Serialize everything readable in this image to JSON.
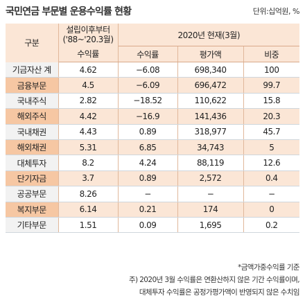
{
  "title": "국민연금 부문별 운용수익률 현황",
  "unit": "단위:십억원, %",
  "header": {
    "category": "구분",
    "since_line1": "설립이후부터",
    "since_line2": "('88~'20.3월)",
    "current": "2020년 현재(3월)",
    "col_since_return": "수익률",
    "col_return": "수익률",
    "col_value": "평가액",
    "col_share": "비중"
  },
  "rows": [
    {
      "name": "기금자산 계",
      "since": "4.62",
      "ret": "−6.08",
      "value": "698,340",
      "share": "100",
      "shade": false
    },
    {
      "name": "금융부문",
      "since": "4.5",
      "ret": "−6.09",
      "value": "696,472",
      "share": "99.7",
      "shade": true
    },
    {
      "name": "국내주식",
      "since": "2.82",
      "ret": "−18.52",
      "value": "110,622",
      "share": "15.8",
      "shade": false
    },
    {
      "name": "해외주식",
      "since": "4.42",
      "ret": "−16.9",
      "value": "141,436",
      "share": "20.3",
      "shade": true
    },
    {
      "name": "국내채권",
      "since": "4.43",
      "ret": "0.89",
      "value": "318,977",
      "share": "45.7",
      "shade": false
    },
    {
      "name": "해외채권",
      "since": "5.31",
      "ret": "6.85",
      "value": "34,743",
      "share": "5",
      "shade": true
    },
    {
      "name": "대체투자",
      "since": "8.2",
      "ret": "4.24",
      "value": "88,119",
      "share": "12.6",
      "shade": false
    },
    {
      "name": "단기자금",
      "since": "3.7",
      "ret": "0.89",
      "value": "2,572",
      "share": "0.4",
      "shade": true
    },
    {
      "name": "공공부문",
      "since": "8.26",
      "ret": "−",
      "value": "−",
      "share": "−",
      "shade": false
    },
    {
      "name": "복지부문",
      "since": "6.14",
      "ret": "0.21",
      "value": "174",
      "share": "0",
      "shade": true
    },
    {
      "name": "기타부문",
      "since": "1.51",
      "ret": "0.09",
      "value": "1,695",
      "share": "0.2",
      "shade": false
    }
  ],
  "notes": {
    "line1": "*금액가중수익률 기준",
    "line2": "주) 2020년 3월 수익률은 연환산하지 않은 기간 수익률이며,",
    "line3": "대체투자 수익률은 공정가평가액이 반영되지 않은 수치임"
  }
}
